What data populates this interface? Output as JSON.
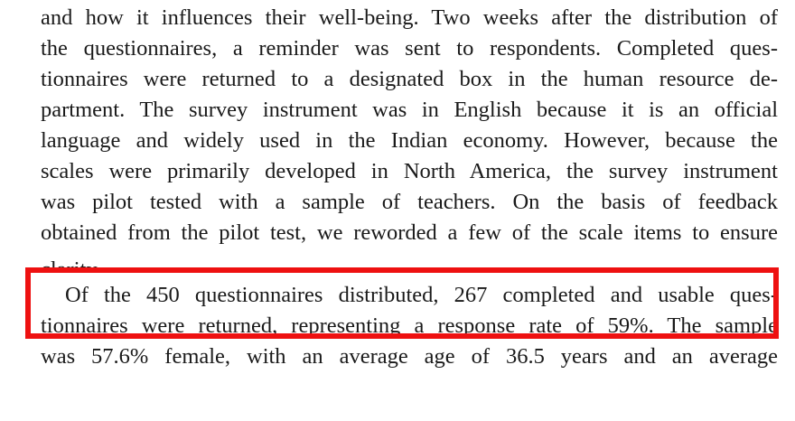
{
  "paragraph_1": {
    "lines": [
      "and how it influences their well-being. Two weeks after the distribution of",
      "the questionnaires, a reminder was sent to respondents. Completed ques-",
      "tionnaires were returned to a designated box in the human resource de-",
      "partment. The survey instrument was in English because it is an official",
      "language and widely used in the Indian economy. However, because the",
      "scales were primarily developed in North America, the survey instrument",
      "was pilot tested with a sample of teachers. On the basis of feedback",
      "obtained from the pilot test, we reworded a few of the scale items to ensure",
      "clarity."
    ]
  },
  "paragraph_2": {
    "lines": [
      "Of the 450 questionnaires distributed, 267 completed and usable ques-",
      "tionnaires were returned, representing a response rate of 59%. The sample",
      "was 57.6% female, with an average age of 36.5 years and an average"
    ]
  },
  "highlight": {
    "color": "#ee1111"
  }
}
